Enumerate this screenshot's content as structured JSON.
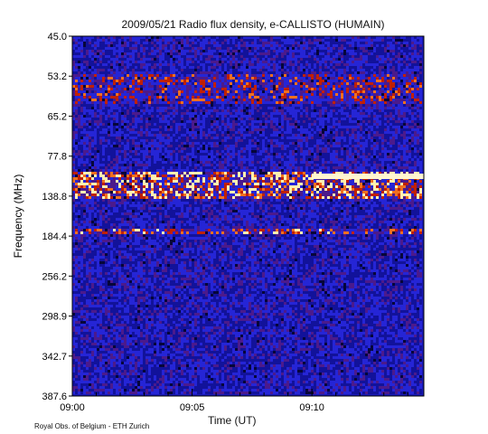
{
  "chart_data": {
    "type": "heatmap",
    "title": "2009/05/21  Radio flux density, e-CALLISTO (HUMAIN)",
    "xlabel": "Time (UT)",
    "ylabel": "Frequency (MHz)",
    "x_ticks": [
      "09:00",
      "09:05",
      "09:10"
    ],
    "y_ticks": [
      "45.0",
      "53.2",
      "65.2",
      "77.8",
      "138.8",
      "184.4",
      "256.2",
      "298.9",
      "342.7",
      "387.6"
    ],
    "x_range": [
      "09:00",
      "09:14:40"
    ],
    "colors": {
      "background": "#1a1ab8",
      "low": "#0a0a60",
      "mid": "#cc2a00",
      "high": "#ffe8a0"
    }
  },
  "credit": "Royal Obs. of Belgium - ETH Zurich"
}
